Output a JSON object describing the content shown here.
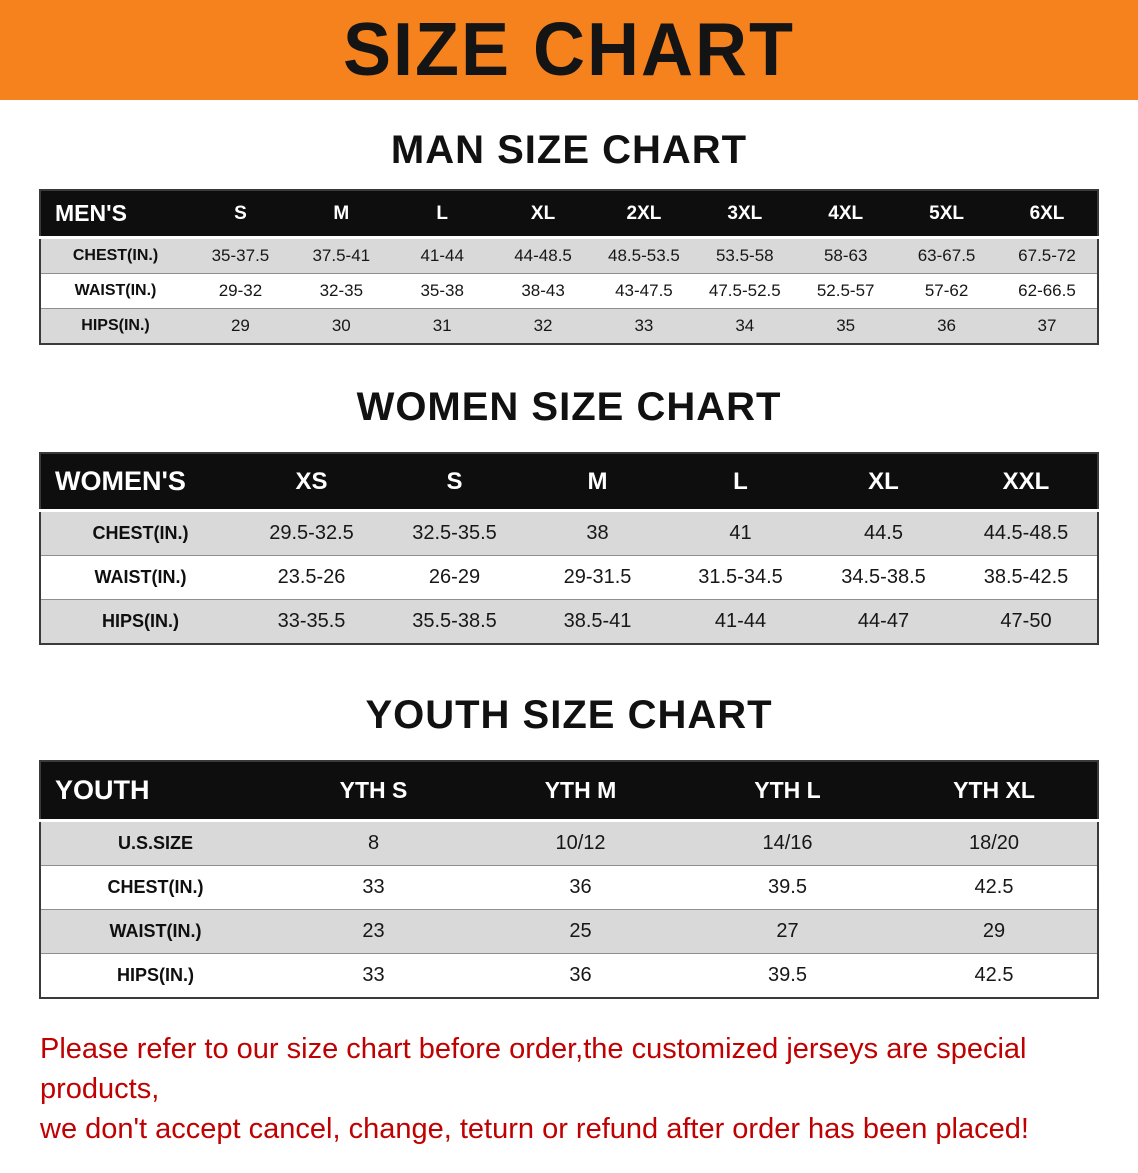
{
  "banner": {
    "title": "SIZE CHART"
  },
  "colors": {
    "banner_bg": "#F6821E",
    "header_bg": "#0E0E0E",
    "row_alt": "#D9D9D9",
    "footer_red": "#C00101"
  },
  "footer": {
    "line1": "Please refer to our size chart before order,the customized jerseys are special products,",
    "line2": "we don't accept cancel, change, teturn or refund after order has been placed!"
  },
  "chart_data": [
    {
      "type": "table",
      "title": "MAN SIZE CHART",
      "corner_label": "MEN'S",
      "columns": [
        "S",
        "M",
        "L",
        "XL",
        "2XL",
        "3XL",
        "4XL",
        "5XL",
        "6XL"
      ],
      "rows": [
        {
          "label": "CHEST(IN.)",
          "values": [
            "35-37.5",
            "37.5-41",
            "41-44",
            "44-48.5",
            "48.5-53.5",
            "53.5-58",
            "58-63",
            "63-67.5",
            "67.5-72"
          ]
        },
        {
          "label": "WAIST(IN.)",
          "values": [
            "29-32",
            "32-35",
            "35-38",
            "38-43",
            "43-47.5",
            "47.5-52.5",
            "52.5-57",
            "57-62",
            "62-66.5"
          ]
        },
        {
          "label": "HIPS(IN.)",
          "values": [
            "29",
            "30",
            "31",
            "32",
            "33",
            "34",
            "35",
            "36",
            "37"
          ]
        }
      ]
    },
    {
      "type": "table",
      "title": "WOMEN SIZE CHART",
      "corner_label": "WOMEN'S",
      "columns": [
        "XS",
        "S",
        "M",
        "L",
        "XL",
        "XXL"
      ],
      "rows": [
        {
          "label": "CHEST(IN.)",
          "values": [
            "29.5-32.5",
            "32.5-35.5",
            "38",
            "41",
            "44.5",
            "44.5-48.5"
          ]
        },
        {
          "label": "WAIST(IN.)",
          "values": [
            "23.5-26",
            "26-29",
            "29-31.5",
            "31.5-34.5",
            "34.5-38.5",
            "38.5-42.5"
          ]
        },
        {
          "label": "HIPS(IN.)",
          "values": [
            "33-35.5",
            "35.5-38.5",
            "38.5-41",
            "41-44",
            "44-47",
            "47-50"
          ]
        }
      ]
    },
    {
      "type": "table",
      "title": "YOUTH SIZE CHART",
      "corner_label": "YOUTH",
      "columns": [
        "YTH S",
        "YTH M",
        "YTH L",
        "YTH XL"
      ],
      "rows": [
        {
          "label": "U.S.SIZE",
          "values": [
            "8",
            "10/12",
            "14/16",
            "18/20"
          ]
        },
        {
          "label": "CHEST(IN.)",
          "values": [
            "33",
            "36",
            "39.5",
            "42.5"
          ]
        },
        {
          "label": "WAIST(IN.)",
          "values": [
            "23",
            "25",
            "27",
            "29"
          ]
        },
        {
          "label": "HIPS(IN.)",
          "values": [
            "33",
            "36",
            "39.5",
            "42.5"
          ]
        }
      ]
    }
  ]
}
